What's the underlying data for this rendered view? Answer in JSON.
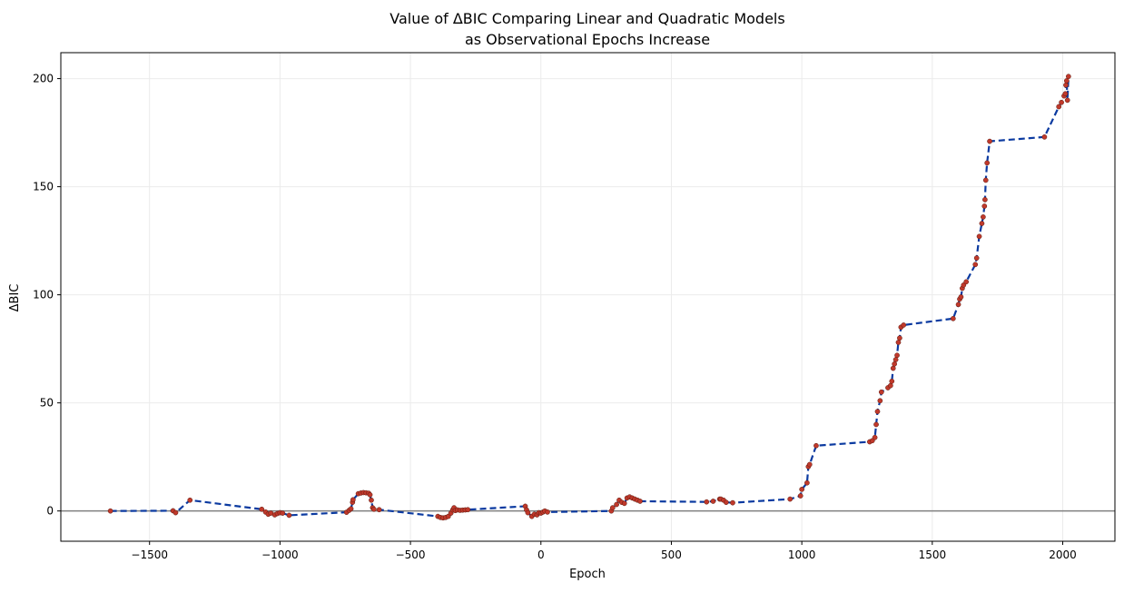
{
  "chart_data": {
    "type": "line",
    "title_line1": "Value of ΔBIC Comparing Linear and Quadratic Models",
    "title_line2": "as Observational Epochs Increase",
    "xlabel": "Epoch",
    "ylabel": "ΔBIC",
    "xlim": [
      -1840,
      2200
    ],
    "ylim": [
      -14,
      212
    ],
    "x_ticks": [
      -1500,
      -1000,
      -500,
      0,
      500,
      1000,
      1500,
      2000
    ],
    "x_tick_labels": [
      "−1500",
      "−1000",
      "−500",
      "0",
      "500",
      "1000",
      "1500",
      "2000"
    ],
    "y_ticks": [
      0,
      50,
      100,
      150,
      200
    ],
    "y_tick_labels": [
      "0",
      "50",
      "100",
      "150",
      "200"
    ],
    "grid": true,
    "reference_line_y": 0,
    "colors": {
      "line": "#0b3aa0",
      "marker": "#c0392b",
      "zero_line": "#808080",
      "grid": "#ebebeb"
    },
    "series": [
      {
        "x": [
          -1650,
          -1410,
          -1400,
          -1345,
          -1070,
          -1055,
          -1045,
          -1035,
          -1020,
          -1010,
          -1000,
          -990,
          -965,
          -745,
          -735,
          -728,
          -722,
          -720,
          -700,
          -690,
          -680,
          -670,
          -660,
          -655,
          -650,
          -645,
          -640,
          -620,
          -395,
          -385,
          -375,
          -365,
          -355,
          -345,
          -338,
          -333,
          -328,
          -320,
          -310,
          -300,
          -290,
          -280,
          -60,
          -55,
          -50,
          -35,
          -25,
          -15,
          -8,
          0,
          8,
          15,
          25,
          270,
          275,
          290,
          300,
          310,
          320,
          330,
          340,
          350,
          360,
          370,
          380,
          635,
          660,
          685,
          690,
          700,
          710,
          735,
          955,
          995,
          1000,
          1020,
          1025,
          1030,
          1055,
          1260,
          1270,
          1280,
          1285,
          1290,
          1300,
          1305,
          1330,
          1340,
          1345,
          1350,
          1355,
          1360,
          1365,
          1370,
          1375,
          1380,
          1390,
          1580,
          1600,
          1605,
          1610,
          1615,
          1620,
          1630,
          1665,
          1670,
          1680,
          1690,
          1695,
          1700,
          1702,
          1705,
          1710,
          1720,
          1930,
          1985,
          1995,
          2005,
          2010,
          2012,
          2015,
          2018,
          2022
        ],
        "y": [
          0.0,
          0.1,
          -0.8,
          5.0,
          0.8,
          -0.5,
          -1.5,
          -1.0,
          -1.8,
          -1.2,
          -0.8,
          -1.0,
          -2.0,
          -0.6,
          0.3,
          1.0,
          4.0,
          5.2,
          8.0,
          8.3,
          8.5,
          8.4,
          8.2,
          7.5,
          5.0,
          1.5,
          0.8,
          0.6,
          -2.5,
          -3.0,
          -3.2,
          -3.0,
          -2.5,
          -1.0,
          0.5,
          1.5,
          0.2,
          0.5,
          0.3,
          0.4,
          0.5,
          0.6,
          2.2,
          0.5,
          -0.8,
          -2.5,
          -1.5,
          -1.8,
          -0.8,
          -1.0,
          -0.5,
          0.0,
          -0.5,
          0.0,
          1.5,
          3.0,
          5.0,
          4.0,
          3.5,
          6.0,
          6.5,
          6.0,
          5.5,
          5.0,
          4.5,
          4.2,
          4.5,
          5.5,
          5.5,
          5.0,
          4.0,
          3.8,
          5.5,
          7.0,
          10.0,
          13.0,
          20.5,
          21.5,
          30.2,
          32.0,
          32.5,
          34.0,
          40.0,
          46.0,
          51.0,
          55.0,
          57.0,
          58.0,
          60.0,
          66.0,
          68.0,
          70.0,
          72.0,
          78.0,
          80.0,
          85.0,
          86.0,
          89.0,
          95.5,
          98.0,
          99.0,
          103.0,
          104.5,
          106.0,
          114.0,
          117.0,
          127.0,
          133.0,
          136.0,
          141.0,
          144.0,
          153.0,
          161.0,
          171.0,
          173.0,
          187.0,
          189.0,
          192.0,
          193.0,
          197.0,
          199.0,
          190.0,
          201.0
        ]
      }
    ]
  }
}
